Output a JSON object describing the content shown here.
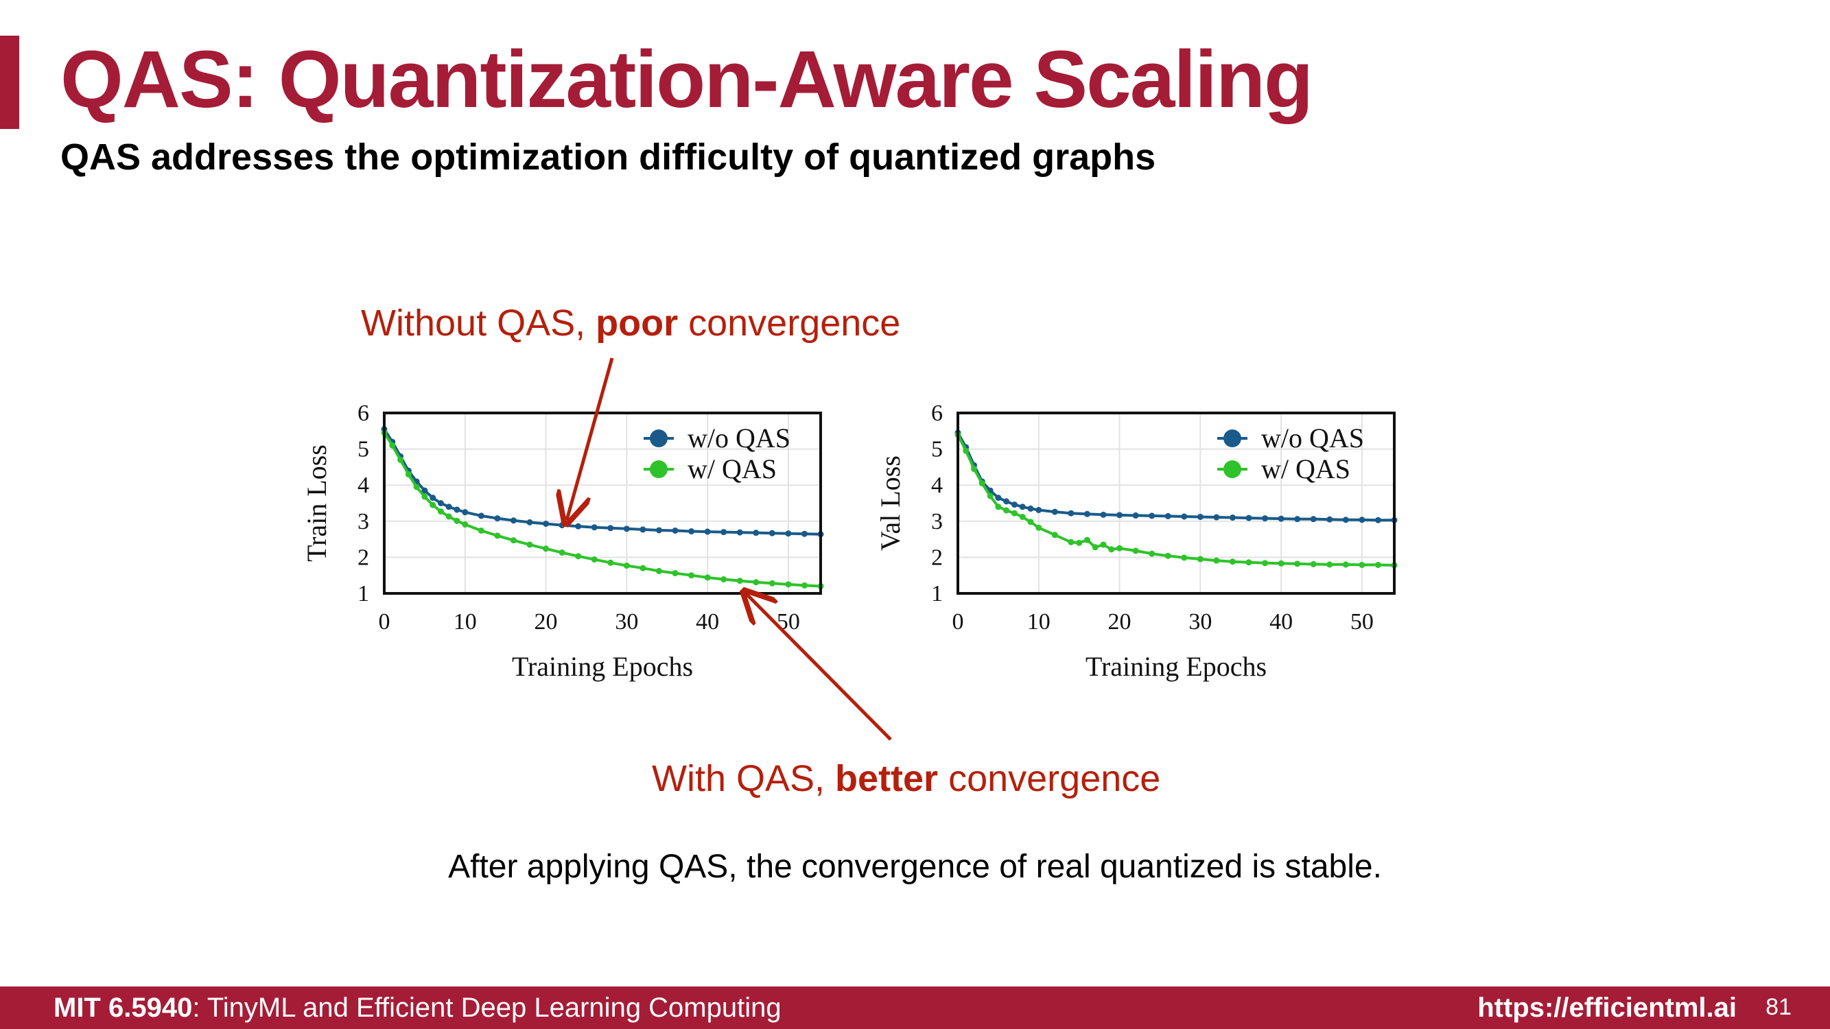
{
  "slide": {
    "title": "QAS: Quantization-Aware Scaling",
    "subtitle": "QAS addresses the optimization difficulty of quantized graphs",
    "annotation_top": {
      "prefix": "Without QAS, ",
      "bold": "poor",
      "suffix": " convergence"
    },
    "annotation_bottom": {
      "prefix": "With QAS, ",
      "bold": "better",
      "suffix": " convergence"
    },
    "caption": "After applying QAS, the convergence of real quantized is stable.",
    "page_number": "81"
  },
  "footer": {
    "course_code": "MIT 6.5940",
    "course_name": ": TinyML and Efficient Deep Learning Computing",
    "url": "https://efficientml.ai"
  },
  "colors": {
    "brand": "#a51c36",
    "annotation": "#b4200c",
    "wo_qas": "#1a5a8a",
    "w_qas": "#2ec32a"
  },
  "chart_data": [
    {
      "type": "line",
      "xlabel": "Training Epochs",
      "ylabel": "Train Loss",
      "xlim": [
        0,
        54
      ],
      "ylim": [
        1,
        6
      ],
      "xticks": [
        0,
        10,
        20,
        30,
        40,
        50
      ],
      "yticks": [
        1,
        2,
        3,
        4,
        5,
        6
      ],
      "grid": true,
      "legend": "top-right",
      "series": [
        {
          "name": "w/o QAS",
          "color": "#1a5a8a",
          "x": [
            0,
            1,
            2,
            3,
            4,
            5,
            6,
            7,
            8,
            9,
            10,
            12,
            14,
            16,
            18,
            20,
            22,
            24,
            26,
            28,
            30,
            32,
            34,
            36,
            38,
            40,
            42,
            44,
            46,
            48,
            50,
            52,
            54
          ],
          "y": [
            5.55,
            5.2,
            4.8,
            4.4,
            4.1,
            3.85,
            3.65,
            3.5,
            3.4,
            3.32,
            3.25,
            3.15,
            3.08,
            3.02,
            2.97,
            2.93,
            2.89,
            2.86,
            2.83,
            2.81,
            2.79,
            2.77,
            2.75,
            2.74,
            2.72,
            2.71,
            2.7,
            2.69,
            2.68,
            2.67,
            2.66,
            2.65,
            2.64
          ]
        },
        {
          "name": "w/ QAS",
          "color": "#2ec32a",
          "x": [
            0,
            1,
            2,
            3,
            4,
            5,
            6,
            7,
            8,
            9,
            10,
            12,
            14,
            16,
            18,
            20,
            22,
            24,
            26,
            28,
            30,
            32,
            34,
            36,
            38,
            40,
            42,
            44,
            46,
            48,
            50,
            52,
            54
          ],
          "y": [
            5.45,
            5.1,
            4.7,
            4.3,
            3.95,
            3.68,
            3.45,
            3.27,
            3.13,
            3.01,
            2.91,
            2.74,
            2.6,
            2.47,
            2.35,
            2.24,
            2.13,
            2.03,
            1.94,
            1.85,
            1.77,
            1.7,
            1.62,
            1.56,
            1.5,
            1.44,
            1.39,
            1.35,
            1.31,
            1.28,
            1.25,
            1.22,
            1.2
          ]
        }
      ]
    },
    {
      "type": "line",
      "xlabel": "Training Epochs",
      "ylabel": "Val Loss",
      "xlim": [
        0,
        54
      ],
      "ylim": [
        1,
        6
      ],
      "xticks": [
        0,
        10,
        20,
        30,
        40,
        50
      ],
      "yticks": [
        1,
        2,
        3,
        4,
        5,
        6
      ],
      "grid": true,
      "legend": "top-right",
      "series": [
        {
          "name": "w/o QAS",
          "color": "#1a5a8a",
          "x": [
            0,
            1,
            2,
            3,
            4,
            5,
            6,
            7,
            8,
            9,
            10,
            12,
            14,
            16,
            18,
            20,
            22,
            24,
            26,
            28,
            30,
            32,
            34,
            36,
            38,
            40,
            42,
            44,
            46,
            48,
            50,
            52,
            54
          ],
          "y": [
            5.45,
            5.05,
            4.55,
            4.1,
            3.85,
            3.65,
            3.55,
            3.46,
            3.4,
            3.35,
            3.31,
            3.26,
            3.22,
            3.2,
            3.18,
            3.17,
            3.16,
            3.15,
            3.14,
            3.13,
            3.12,
            3.11,
            3.1,
            3.09,
            3.08,
            3.07,
            3.06,
            3.06,
            3.05,
            3.04,
            3.04,
            3.03,
            3.03
          ]
        },
        {
          "name": "w/ QAS",
          "color": "#2ec32a",
          "x": [
            0,
            1,
            2,
            3,
            4,
            5,
            6,
            7,
            8,
            9,
            10,
            12,
            14,
            15,
            16,
            17,
            18,
            19,
            20,
            22,
            24,
            26,
            28,
            30,
            32,
            34,
            36,
            38,
            40,
            42,
            44,
            46,
            48,
            50,
            52,
            54
          ],
          "y": [
            5.4,
            4.95,
            4.45,
            4.05,
            3.7,
            3.4,
            3.3,
            3.22,
            3.12,
            2.98,
            2.82,
            2.62,
            2.42,
            2.4,
            2.48,
            2.28,
            2.35,
            2.22,
            2.25,
            2.18,
            2.1,
            2.04,
            1.99,
            1.95,
            1.91,
            1.88,
            1.86,
            1.84,
            1.83,
            1.82,
            1.81,
            1.8,
            1.8,
            1.79,
            1.79,
            1.78
          ]
        }
      ]
    }
  ]
}
